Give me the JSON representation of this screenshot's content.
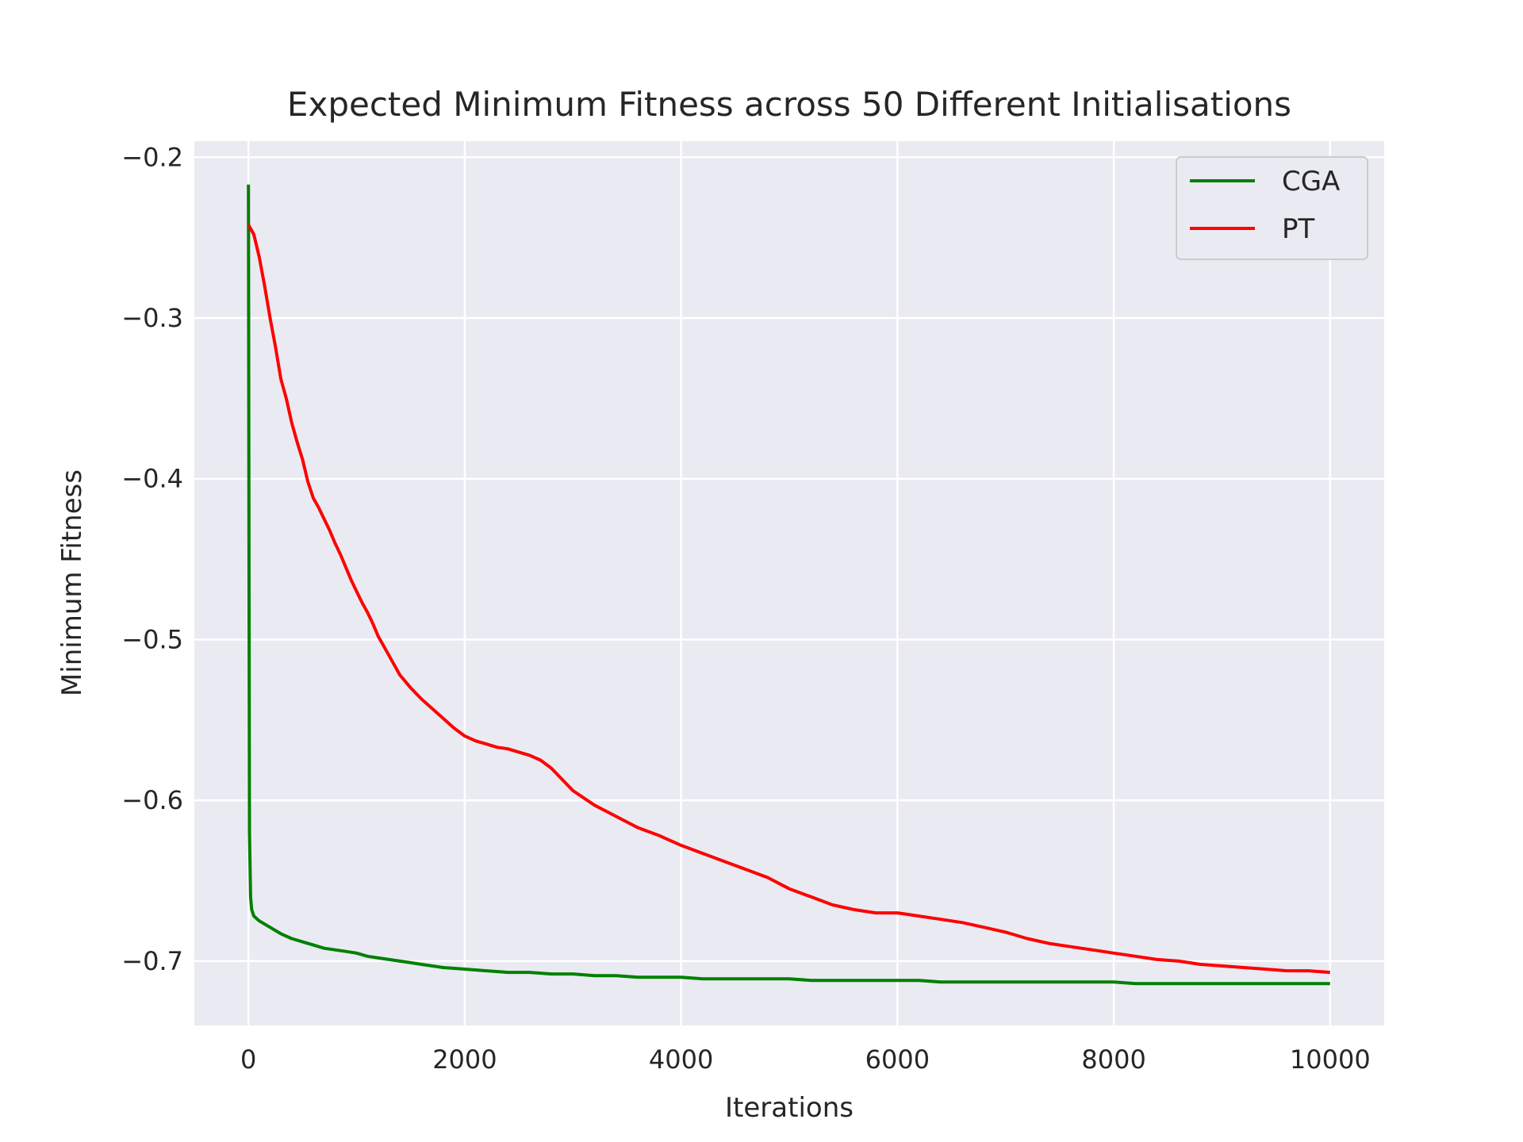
{
  "chart_data": {
    "type": "line",
    "title": "Expected Minimum Fitness across 50 Different Initialisations",
    "xlabel": "Iterations",
    "ylabel": "Minimum Fitness",
    "xlim": [
      -500,
      10500
    ],
    "ylim": [
      -0.74,
      -0.19
    ],
    "xticks": [
      0,
      2000,
      4000,
      6000,
      8000,
      10000
    ],
    "yticks": [
      -0.2,
      -0.3,
      -0.4,
      -0.5,
      -0.6,
      -0.7
    ],
    "xtick_labels": [
      "0",
      "2000",
      "4000",
      "6000",
      "8000",
      "10000"
    ],
    "ytick_labels": [
      "−0.2",
      "−0.3",
      "−0.4",
      "−0.5",
      "−0.6",
      "−0.7"
    ],
    "grid": true,
    "legend_position": "top-right",
    "background": "#eaeaf2",
    "series": [
      {
        "name": "CGA",
        "color": "#008000",
        "x": [
          0,
          5,
          10,
          20,
          30,
          50,
          100,
          200,
          300,
          400,
          500,
          600,
          700,
          800,
          900,
          1000,
          1100,
          1200,
          1300,
          1400,
          1500,
          1600,
          1700,
          1800,
          2000,
          2200,
          2400,
          2600,
          2800,
          3000,
          3200,
          3400,
          3600,
          3800,
          4000,
          4200,
          4400,
          4600,
          4800,
          5000,
          5200,
          5400,
          5600,
          5800,
          6000,
          6200,
          6400,
          6600,
          6800,
          7000,
          7200,
          7400,
          7600,
          7800,
          8000,
          8200,
          8400,
          8600,
          8800,
          9000,
          9200,
          9400,
          9600,
          9800,
          10000
        ],
        "y": [
          -0.217,
          -0.45,
          -0.62,
          -0.66,
          -0.668,
          -0.672,
          -0.675,
          -0.679,
          -0.683,
          -0.686,
          -0.688,
          -0.69,
          -0.692,
          -0.693,
          -0.694,
          -0.695,
          -0.697,
          -0.698,
          -0.699,
          -0.7,
          -0.701,
          -0.702,
          -0.703,
          -0.704,
          -0.705,
          -0.706,
          -0.707,
          -0.707,
          -0.708,
          -0.708,
          -0.709,
          -0.709,
          -0.71,
          -0.71,
          -0.71,
          -0.711,
          -0.711,
          -0.711,
          -0.711,
          -0.711,
          -0.712,
          -0.712,
          -0.712,
          -0.712,
          -0.712,
          -0.712,
          -0.713,
          -0.713,
          -0.713,
          -0.713,
          -0.713,
          -0.713,
          -0.713,
          -0.713,
          -0.713,
          -0.714,
          -0.714,
          -0.714,
          -0.714,
          -0.714,
          -0.714,
          -0.714,
          -0.714,
          -0.714,
          -0.714
        ]
      },
      {
        "name": "PT",
        "color": "#ff0000",
        "x": [
          0,
          50,
          100,
          150,
          200,
          250,
          300,
          350,
          400,
          450,
          500,
          550,
          600,
          650,
          700,
          750,
          800,
          850,
          900,
          950,
          1000,
          1050,
          1100,
          1150,
          1200,
          1300,
          1400,
          1500,
          1600,
          1700,
          1800,
          1900,
          2000,
          2100,
          2200,
          2300,
          2400,
          2500,
          2600,
          2700,
          2800,
          2900,
          3000,
          3200,
          3400,
          3600,
          3800,
          4000,
          4200,
          4400,
          4600,
          4800,
          5000,
          5200,
          5400,
          5600,
          5800,
          6000,
          6200,
          6400,
          6600,
          6800,
          7000,
          7200,
          7400,
          7600,
          7800,
          8000,
          8200,
          8400,
          8600,
          8800,
          9000,
          9200,
          9400,
          9600,
          9800,
          10000
        ],
        "y": [
          -0.242,
          -0.248,
          -0.262,
          -0.28,
          -0.3,
          -0.318,
          -0.338,
          -0.35,
          -0.365,
          -0.377,
          -0.388,
          -0.402,
          -0.412,
          -0.418,
          -0.425,
          -0.432,
          -0.44,
          -0.447,
          -0.455,
          -0.463,
          -0.47,
          -0.477,
          -0.483,
          -0.49,
          -0.498,
          -0.51,
          -0.522,
          -0.53,
          -0.537,
          -0.543,
          -0.549,
          -0.555,
          -0.56,
          -0.563,
          -0.565,
          -0.567,
          -0.568,
          -0.57,
          -0.572,
          -0.575,
          -0.58,
          -0.587,
          -0.594,
          -0.603,
          -0.61,
          -0.617,
          -0.622,
          -0.628,
          -0.633,
          -0.638,
          -0.643,
          -0.648,
          -0.655,
          -0.66,
          -0.665,
          -0.668,
          -0.67,
          -0.67,
          -0.672,
          -0.674,
          -0.676,
          -0.679,
          -0.682,
          -0.686,
          -0.689,
          -0.691,
          -0.693,
          -0.695,
          -0.697,
          -0.699,
          -0.7,
          -0.702,
          -0.703,
          -0.704,
          -0.705,
          -0.706,
          -0.706,
          -0.707
        ]
      }
    ]
  }
}
